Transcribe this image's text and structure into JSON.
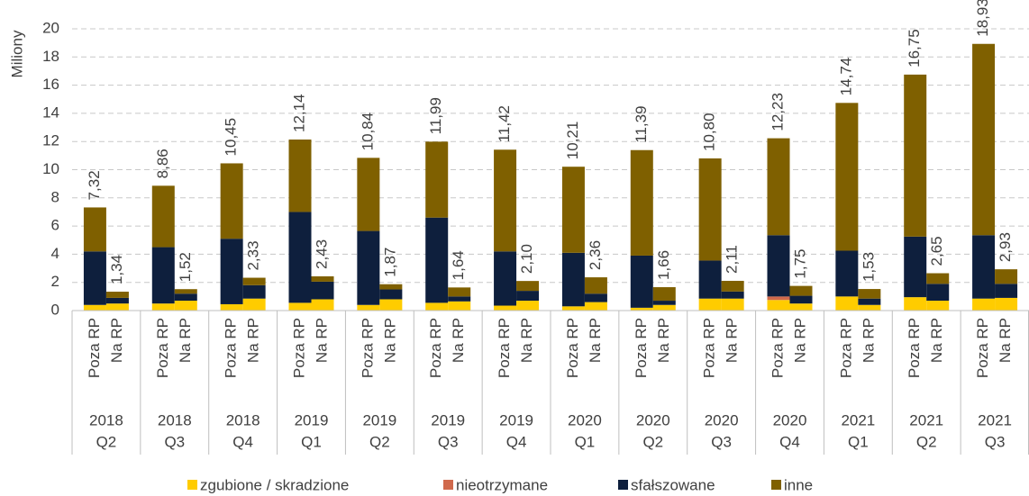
{
  "chart_data": {
    "type": "stacked-bar",
    "ylabel": "Miliony",
    "categories": [
      "Poza RP",
      "Na RP",
      "Poza RP",
      "Na RP",
      "Poza RP",
      "Na RP",
      "Poza RP",
      "Na RP",
      "Poza RP",
      "Na RP",
      "Poza RP",
      "Na RP",
      "Poza RP",
      "Na RP",
      "Poza RP",
      "Na RP",
      "Poza RP",
      "Na RP",
      "Poza RP",
      "Na RP",
      "Poza RP",
      "Na RP",
      "Poza RP",
      "Na RP",
      "Poza RP",
      "Na RP",
      "Poza RP",
      "Na RP"
    ],
    "groups": [
      [
        "2018",
        "Q2"
      ],
      [
        "2018",
        "Q3"
      ],
      [
        "2018",
        "Q4"
      ],
      [
        "2019",
        "Q1"
      ],
      [
        "2019",
        "Q2"
      ],
      [
        "2019",
        "Q3"
      ],
      [
        "2019",
        "Q4"
      ],
      [
        "2020",
        "Q1"
      ],
      [
        "2020",
        "Q2"
      ],
      [
        "2020",
        "Q3"
      ],
      [
        "2020",
        "Q4"
      ],
      [
        "2021",
        "Q1"
      ],
      [
        "2021",
        "Q2"
      ],
      [
        "2021",
        "Q3"
      ]
    ],
    "series": [
      {
        "name": "zgubione / skradzione",
        "color": "#ffcc00",
        "values": [
          0.4,
          0.5,
          0.5,
          0.7,
          0.45,
          0.85,
          0.55,
          0.8,
          0.4,
          0.8,
          0.55,
          0.65,
          0.35,
          0.7,
          0.3,
          0.6,
          0.2,
          0.4,
          0.85,
          0.85,
          0.75,
          0.5,
          1.0,
          0.4,
          0.95,
          0.7,
          0.85,
          0.9
        ]
      },
      {
        "name": "nieotrzymane",
        "color": "#d0694c",
        "values": [
          0,
          0,
          0,
          0,
          0,
          0,
          0,
          0,
          0,
          0,
          0,
          0,
          0,
          0,
          0,
          0,
          0,
          0,
          0,
          0,
          0.25,
          0,
          0,
          0,
          0,
          0,
          0,
          0
        ]
      },
      {
        "name": "sfałszowane",
        "color": "#0e1f3d",
        "values": [
          3.8,
          0.4,
          4.0,
          0.5,
          4.65,
          0.95,
          6.45,
          1.25,
          5.25,
          0.7,
          6.05,
          0.35,
          3.85,
          0.7,
          3.8,
          0.6,
          3.7,
          0.3,
          2.7,
          0.5,
          4.35,
          0.55,
          3.25,
          0.45,
          4.3,
          1.2,
          4.5,
          1.0
        ]
      },
      {
        "name": "inne",
        "color": "#7f6000",
        "values": [
          3.12,
          0.44,
          4.36,
          0.32,
          5.35,
          0.53,
          5.14,
          0.38,
          5.19,
          0.37,
          5.39,
          0.64,
          7.22,
          0.7,
          6.11,
          1.16,
          7.49,
          0.96,
          7.25,
          0.76,
          6.88,
          0.7,
          10.49,
          0.68,
          11.5,
          0.75,
          13.58,
          1.03
        ]
      }
    ],
    "totals": [
      7.32,
      1.34,
      8.86,
      1.52,
      10.45,
      2.33,
      12.14,
      2.43,
      10.84,
      1.87,
      11.99,
      1.64,
      11.42,
      2.1,
      10.21,
      2.36,
      11.39,
      1.66,
      10.8,
      2.11,
      12.23,
      1.75,
      14.74,
      1.53,
      16.75,
      2.65,
      18.93,
      2.93
    ],
    "total_labels": [
      "7,32",
      "1,34",
      "8,86",
      "1,52",
      "10,45",
      "2,33",
      "12,14",
      "2,43",
      "10,84",
      "1,87",
      "11,99",
      "1,64",
      "11,42",
      "2,10",
      "10,21",
      "2,36",
      "11,39",
      "1,66",
      "10,80",
      "2,11",
      "12,23",
      "1,75",
      "14,74",
      "1,53",
      "16,75",
      "2,65",
      "18,93",
      "2,93"
    ],
    "ylim": [
      0,
      20
    ],
    "yticks": [
      0,
      2,
      4,
      6,
      8,
      10,
      12,
      14,
      16,
      18,
      20
    ],
    "grid": true,
    "legend": "bottom"
  }
}
